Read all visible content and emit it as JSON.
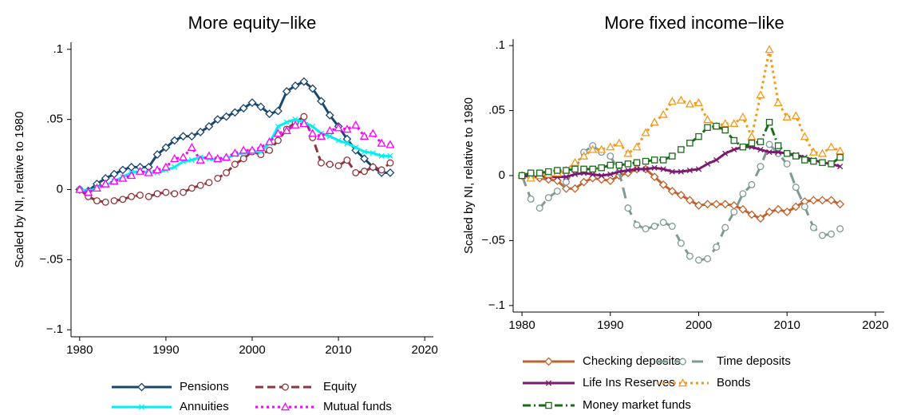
{
  "chart_data": [
    {
      "type": "line",
      "title": "More equity−like",
      "y_label": "Scaled by NI, relative to 1980",
      "x": [
        1980,
        1981,
        1982,
        1983,
        1984,
        1985,
        1986,
        1987,
        1988,
        1989,
        1990,
        1991,
        1992,
        1993,
        1994,
        1995,
        1996,
        1997,
        1998,
        1999,
        2000,
        2001,
        2002,
        2003,
        2004,
        2005,
        2006,
        2007,
        2008,
        2009,
        2010,
        2011,
        2012,
        2013,
        2014,
        2015,
        2016
      ],
      "xlim": [
        1979,
        2021
      ],
      "xticks": [
        1980,
        1990,
        2000,
        2010,
        2020
      ],
      "ylim": [
        -0.105,
        0.105
      ],
      "yticks": [
        {
          "value": -0.1,
          "label": "−.1"
        },
        {
          "value": -0.05,
          "label": "−.05"
        },
        0,
        {
          "value": 0.05,
          "label": ".05"
        },
        {
          "value": 0.1,
          "label": ".1"
        }
      ],
      "series": [
        {
          "name": "Pensions",
          "color": "#1a476f",
          "marker": "diamond",
          "line_style": "solid",
          "values": [
            0,
            -0.001,
            0.004,
            0.008,
            0.011,
            0.014,
            0.016,
            0.016,
            0.016,
            0.025,
            0.03,
            0.035,
            0.038,
            0.038,
            0.041,
            0.045,
            0.05,
            0.052,
            0.055,
            0.058,
            0.062,
            0.059,
            0.054,
            0.056,
            0.07,
            0.074,
            0.077,
            0.072,
            0.063,
            0.053,
            0.045,
            0.036,
            0.028,
            0.022,
            0.016,
            0.012,
            0.012
          ]
        },
        {
          "name": "Equity",
          "color": "#90353b",
          "marker": "circle",
          "line_style": "dash",
          "values": [
            0,
            -0.005,
            -0.008,
            -0.009,
            -0.008,
            -0.007,
            -0.005,
            -0.004,
            -0.005,
            -0.003,
            -0.002,
            -0.003,
            -0.002,
            0.001,
            0.003,
            0.005,
            0.008,
            0.012,
            0.018,
            0.022,
            0.027,
            0.025,
            0.028,
            0.035,
            0.043,
            0.048,
            0.052,
            0.037,
            0.019,
            0.018,
            0.017,
            0.021,
            0.012,
            0.013,
            0.016,
            0.014,
            0.019
          ]
        },
        {
          "name": "Annuities",
          "color": "#00f0f0",
          "marker": "x",
          "line_style": "solid",
          "values": [
            0,
            -0.001,
            0.001,
            0.003,
            0.006,
            0.009,
            0.012,
            0.013,
            0.012,
            0.012,
            0.014,
            0.016,
            0.02,
            0.021,
            0.023,
            0.022,
            0.021,
            0.022,
            0.025,
            0.026,
            0.027,
            0.027,
            0.033,
            0.045,
            0.048,
            0.05,
            0.048,
            0.045,
            0.04,
            0.038,
            0.035,
            0.033,
            0.03,
            0.027,
            0.026,
            0.024,
            0.024
          ]
        },
        {
          "name": "Mutual funds",
          "color": "#ff00ff",
          "marker": "triangle",
          "line_style": "dot",
          "values": [
            0,
            -0.002,
            0.001,
            0.004,
            0.006,
            0.008,
            0.01,
            0.013,
            0.012,
            0.014,
            0.016,
            0.022,
            0.023,
            0.03,
            0.021,
            0.024,
            0.022,
            0.023,
            0.026,
            0.028,
            0.028,
            0.03,
            0.034,
            0.04,
            0.042,
            0.046,
            0.047,
            0.04,
            0.038,
            0.042,
            0.044,
            0.043,
            0.046,
            0.038,
            0.04,
            0.033,
            0.032
          ]
        }
      ]
    },
    {
      "type": "line",
      "title": "More fixed income−like",
      "y_label": "Scaled by NI, relative to 1980",
      "x": [
        1980,
        1981,
        1982,
        1983,
        1984,
        1985,
        1986,
        1987,
        1988,
        1989,
        1990,
        1991,
        1992,
        1993,
        1994,
        1995,
        1996,
        1997,
        1998,
        1999,
        2000,
        2001,
        2002,
        2003,
        2004,
        2005,
        2006,
        2007,
        2008,
        2009,
        2010,
        2011,
        2012,
        2013,
        2014,
        2015,
        2016
      ],
      "xlim": [
        1979,
        2021
      ],
      "xticks": [
        1980,
        1990,
        2000,
        2010,
        2020
      ],
      "ylim": [
        -0.105,
        0.105
      ],
      "yticks": [
        {
          "value": -0.1,
          "label": "−.1"
        },
        {
          "value": -0.05,
          "label": "−.05"
        },
        0,
        {
          "value": 0.05,
          "label": ".05"
        },
        {
          "value": 0.1,
          "label": ".1"
        }
      ],
      "series": [
        {
          "name": "Checking deposits",
          "color": "#c0622b",
          "marker": "diamond",
          "line_style": "solid",
          "values": [
            0,
            0,
            -0.002,
            -0.003,
            -0.004,
            -0.01,
            -0.01,
            -0.005,
            -0.002,
            -0.003,
            -0.004,
            0,
            0.002,
            0.005,
            0.005,
            -0.001,
            -0.007,
            -0.012,
            -0.015,
            -0.019,
            -0.023,
            -0.022,
            -0.022,
            -0.022,
            -0.023,
            -0.026,
            -0.03,
            -0.033,
            -0.028,
            -0.026,
            -0.028,
            -0.024,
            -0.02,
            -0.019,
            -0.019,
            -0.019,
            -0.022
          ]
        },
        {
          "name": "Time deposits",
          "color": "#7f9a94",
          "marker": "circle",
          "line_style": "longdash",
          "values": [
            0,
            -0.018,
            -0.025,
            -0.017,
            -0.012,
            -0.005,
            0.005,
            0.018,
            0.023,
            0.018,
            0.015,
            0.003,
            -0.025,
            -0.038,
            -0.041,
            -0.039,
            -0.036,
            -0.039,
            -0.052,
            -0.062,
            -0.065,
            -0.064,
            -0.055,
            -0.04,
            -0.028,
            -0.014,
            -0.007,
            0.007,
            0.024,
            0.017,
            0.009,
            -0.009,
            -0.024,
            -0.04,
            -0.046,
            -0.045,
            -0.041
          ]
        },
        {
          "name": "Life Ins Reserves",
          "color": "#7a1a70",
          "marker": "x",
          "line_style": "solid",
          "values": [
            0,
            -0.001,
            -0.001,
            -0.001,
            -0.001,
            -0.001,
            0.001,
            0.002,
            0.001,
            0,
            0.001,
            0.003,
            0.004,
            0.005,
            0.005,
            0.006,
            0.005,
            0.003,
            0.003,
            0.004,
            0.005,
            0.009,
            0.012,
            0.017,
            0.02,
            0.022,
            0.022,
            0.02,
            0.018,
            0.018,
            0.017,
            0.016,
            0.014,
            0.012,
            0.01,
            0.009,
            0.007
          ]
        },
        {
          "name": "Bonds",
          "color": "#f39a1e",
          "marker": "triangle",
          "line_style": "dot",
          "values": [
            0,
            -0.002,
            0,
            0.001,
            0.002,
            0.004,
            0.01,
            0.015,
            0.02,
            0.02,
            0.022,
            0.025,
            0.017,
            0.022,
            0.033,
            0.041,
            0.047,
            0.057,
            0.058,
            0.055,
            0.056,
            0.043,
            0.038,
            0.04,
            0.04,
            0.045,
            0.03,
            0.062,
            0.097,
            0.056,
            0.045,
            0.046,
            0.03,
            0.018,
            0.017,
            0.022,
            0.019
          ]
        },
        {
          "name": "Money market funds",
          "color": "#1a6b1a",
          "marker": "square",
          "line_style": "dashdot",
          "values": [
            0,
            0.002,
            0.002,
            0.003,
            0.004,
            0.004,
            0.005,
            0.005,
            0.005,
            0.006,
            0.008,
            0.008,
            0.009,
            0.01,
            0.011,
            0.012,
            0.012,
            0.015,
            0.02,
            0.025,
            0.03,
            0.037,
            0.038,
            0.035,
            0.027,
            0.022,
            0.025,
            0.026,
            0.041,
            0.023,
            0.017,
            0.015,
            0.012,
            0.011,
            0.01,
            0.009,
            0.014
          ]
        }
      ]
    }
  ]
}
